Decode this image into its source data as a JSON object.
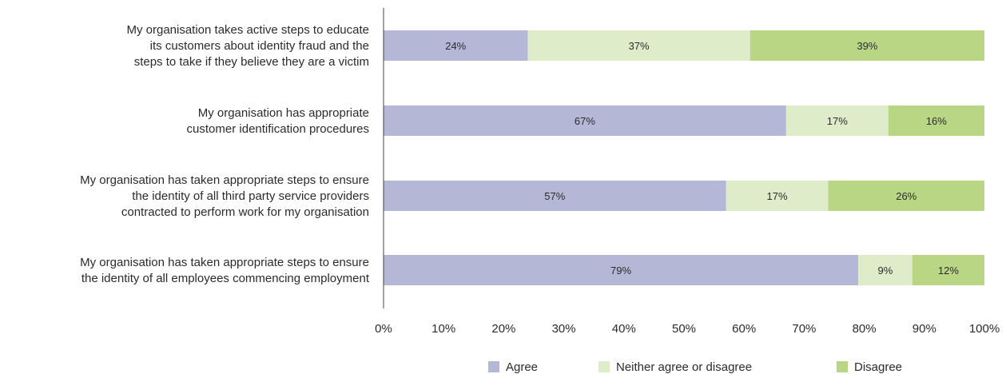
{
  "chart_data": {
    "type": "bar",
    "orientation": "horizontal",
    "stacked": true,
    "categories": [
      [
        "My organisation takes active steps to educate",
        "its customers about identity fraud and the",
        "steps to take if they believe they are a victim"
      ],
      [
        "My organisation has appropriate",
        "customer identification procedures"
      ],
      [
        "My organisation has taken appropriate steps to ensure",
        "the identity of all third party service providers",
        "contracted to perform work for my organisation"
      ],
      [
        "My organisation has taken appropriate steps to ensure",
        "the identity of all employees commencing employment"
      ]
    ],
    "series": [
      {
        "name": "Agree",
        "color": "#b4b8d6",
        "values": [
          24,
          67,
          57,
          79
        ]
      },
      {
        "name": "Neither agree or disagree",
        "color": "#deecc9",
        "values": [
          37,
          17,
          17,
          9
        ]
      },
      {
        "name": "Disagree",
        "color": "#b9d685",
        "values": [
          39,
          16,
          26,
          12
        ]
      }
    ],
    "value_format": "{v}%",
    "xlim": [
      0,
      100
    ],
    "xticks": [
      "0%",
      "10%",
      "20%",
      "30%",
      "40%",
      "50%",
      "60%",
      "70%",
      "80%",
      "90%",
      "100%"
    ],
    "legend": "bottom",
    "grid": false
  }
}
